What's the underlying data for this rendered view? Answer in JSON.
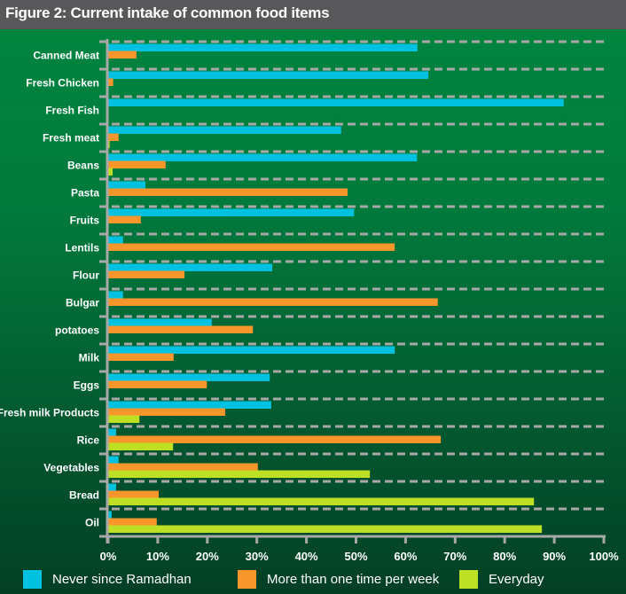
{
  "title": "Figure 2: Current intake of common food items",
  "colors": {
    "never": "#00c2e0",
    "weekly": "#f7962b",
    "everyday": "#bde024",
    "grid": "#a8a8a8",
    "axis": "#a8a8a8"
  },
  "chart_data": {
    "type": "bar",
    "orientation": "horizontal",
    "title": "Figure 2: Current intake of common food items",
    "xlabel": "",
    "ylabel": "",
    "xlim": [
      0,
      100
    ],
    "x_ticks": [
      "0%",
      "10%",
      "20%",
      "30%",
      "40%",
      "50%",
      "60%",
      "70%",
      "80%",
      "90%",
      "100%"
    ],
    "grid": "horizontal dashed separators between categories",
    "legend_position": "bottom",
    "categories": [
      "Canned Meat",
      "Fresh Chicken",
      "Fresh Fish",
      "Fresh meat",
      "Beans",
      "Pasta",
      "Fruits",
      "Lentils",
      "Flour",
      "Bulgar",
      "potatoes",
      "Milk",
      "Eggs",
      "Fresh milk Products",
      "Rice",
      "Vegetables",
      "Bread",
      "Oil"
    ],
    "series": [
      {
        "name": "Never since Ramadhan",
        "color_key": "never",
        "values": [
          62.4,
          64.6,
          91.9,
          47.0,
          62.3,
          7.5,
          49.6,
          3.0,
          33.1,
          3.0,
          20.9,
          57.8,
          32.6,
          32.9,
          1.6,
          2.1,
          1.6,
          0.7
        ]
      },
      {
        "name": "More than one time per week",
        "color_key": "weekly",
        "values": [
          5.7,
          1.0,
          0,
          2.1,
          11.6,
          48.3,
          6.6,
          57.8,
          15.4,
          66.5,
          29.2,
          13.2,
          19.9,
          23.6,
          67.1,
          30.2,
          10.2,
          9.8
        ]
      },
      {
        "name": "Everyday",
        "color_key": "everyday",
        "values": [
          0,
          0,
          0,
          0.3,
          0.9,
          0,
          0,
          0,
          0,
          0,
          0,
          0,
          0,
          6.3,
          13.1,
          52.8,
          85.9,
          87.5
        ]
      }
    ]
  },
  "legend": [
    {
      "label": "Never since Ramadhan",
      "color_key": "never"
    },
    {
      "label": "More than one time per week",
      "color_key": "weekly"
    },
    {
      "label": "Everyday",
      "color_key": "everyday"
    }
  ]
}
